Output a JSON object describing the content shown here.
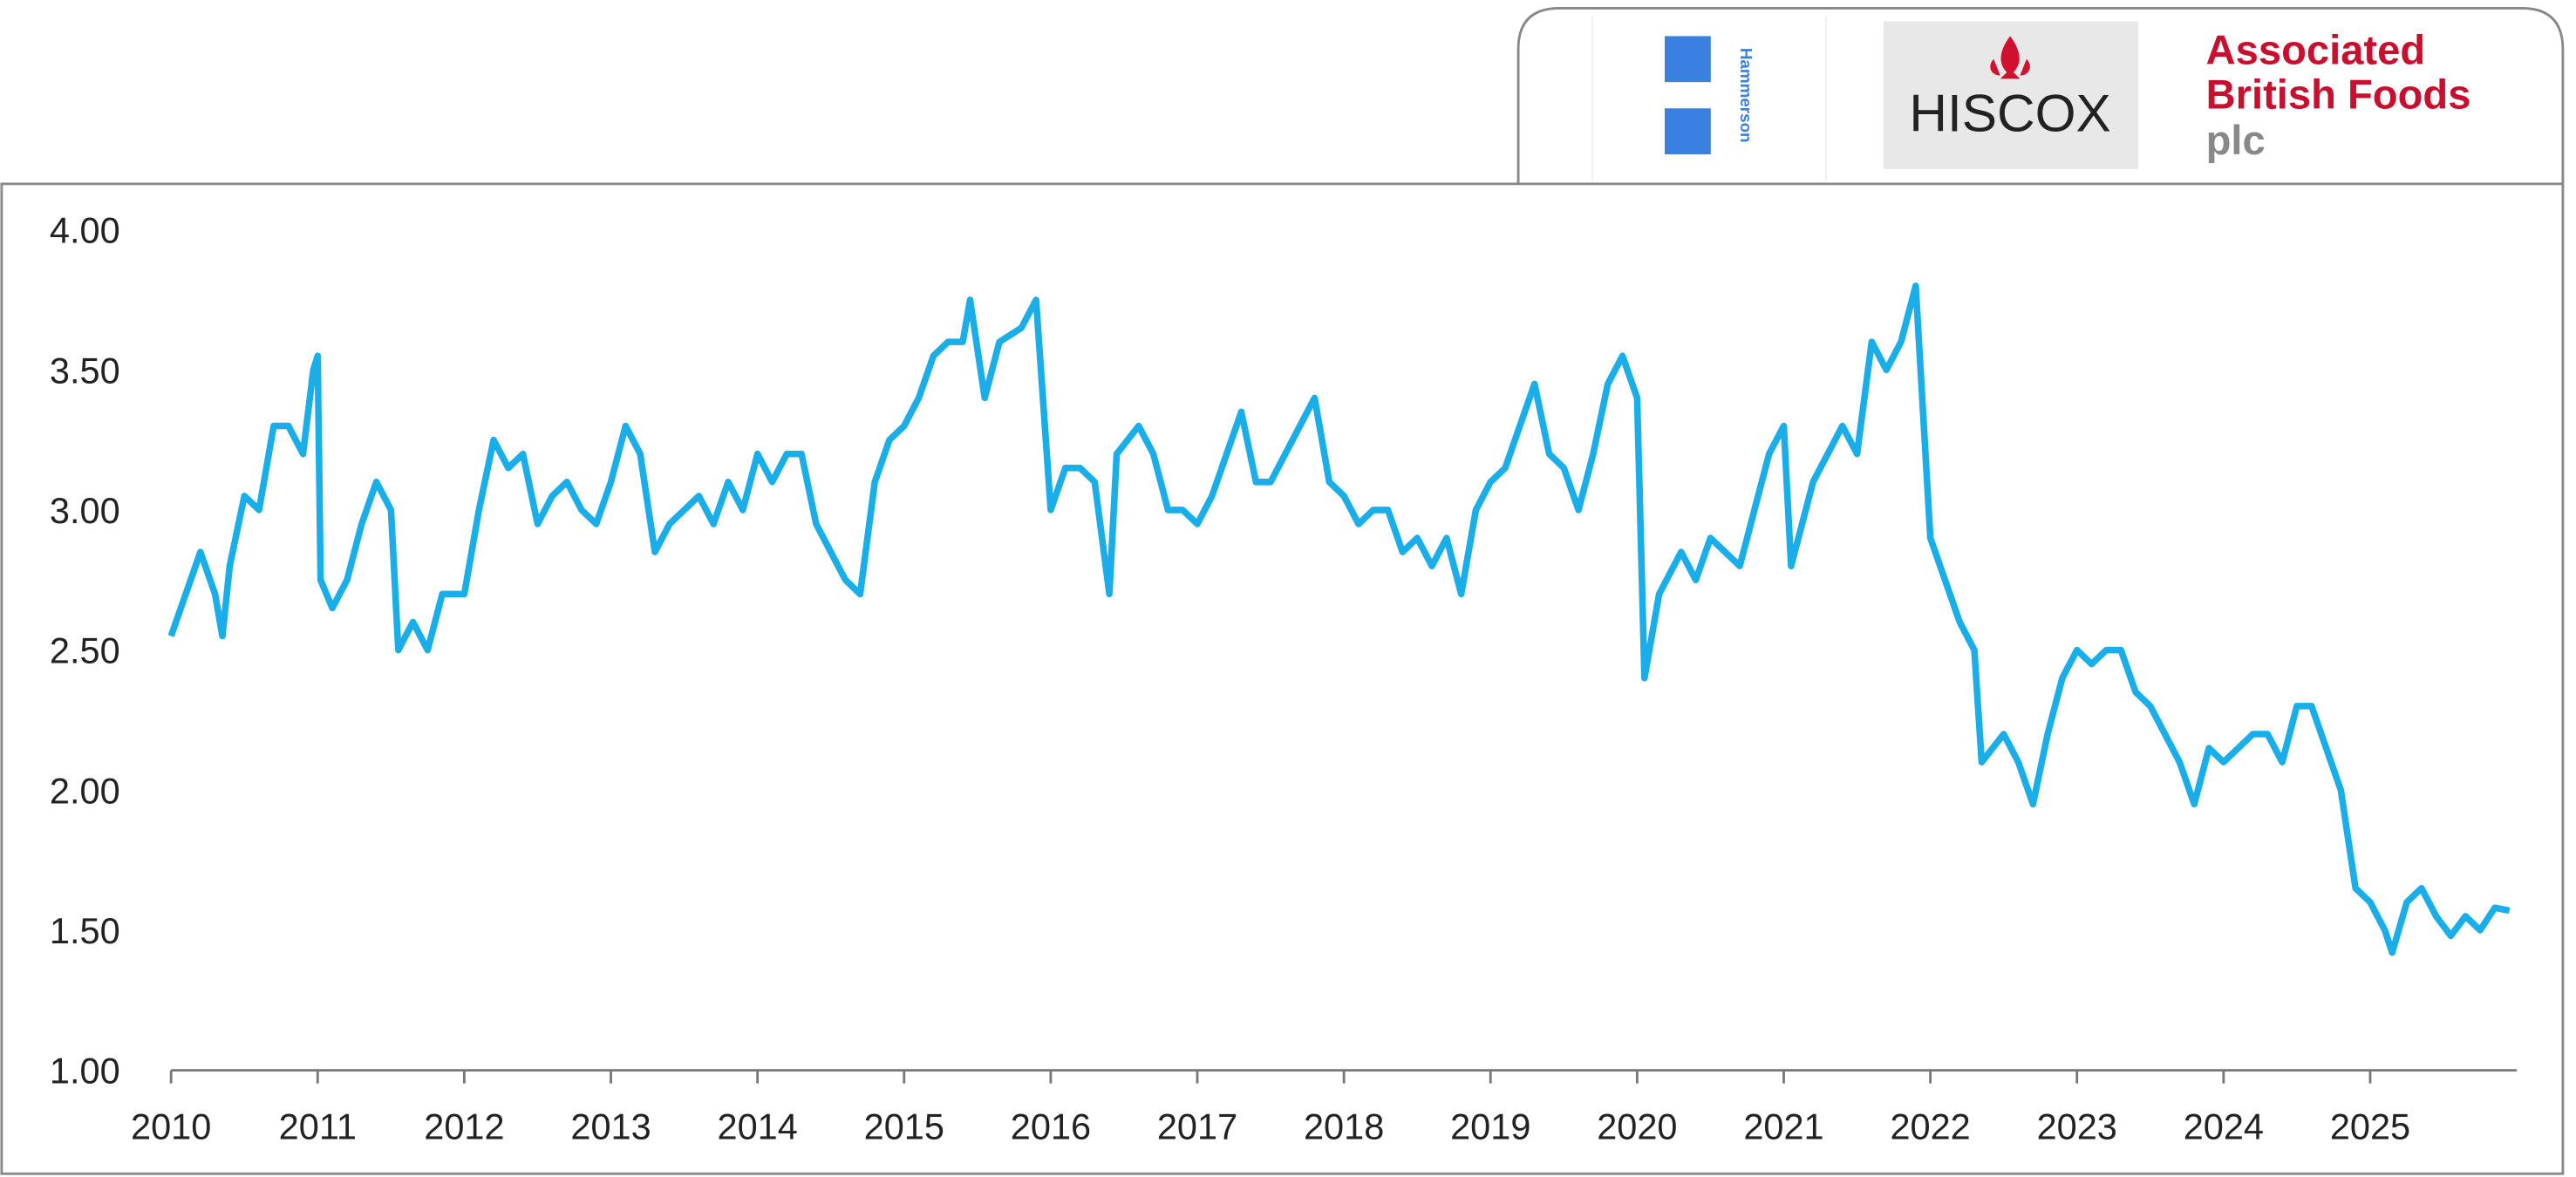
{
  "logos": {
    "hammerson": "Hammerson",
    "hiscox": "HISCOX",
    "abf": [
      "Associated",
      "British Foods",
      "plc"
    ]
  },
  "chart_data": {
    "type": "line",
    "color": "#19aeea",
    "xlim": [
      2010,
      2026
    ],
    "xticks": [
      2010,
      2011,
      2012,
      2013,
      2014,
      2015,
      2016,
      2017,
      2018,
      2019,
      2020,
      2021,
      2022,
      2023,
      2024,
      2025
    ],
    "ylim": [
      1,
      4
    ],
    "yticks": [
      {
        "value": 1,
        "label": "1.00"
      },
      {
        "value": 1.5,
        "label": "1.50"
      },
      {
        "value": 2,
        "label": "2.00"
      },
      {
        "value": 2.5,
        "label": "2.50"
      },
      {
        "value": 3,
        "label": "3.00"
      },
      {
        "value": 3.5,
        "label": "3.50"
      },
      {
        "value": 4,
        "label": "4.00"
      }
    ],
    "x": [
      2010.0,
      2010.1,
      2010.2,
      2010.3,
      2010.35,
      2010.4,
      2010.5,
      2010.6,
      2010.7,
      2010.8,
      2010.9,
      2010.97,
      2011.0,
      2011.02,
      2011.1,
      2011.2,
      2011.3,
      2011.4,
      2011.5,
      2011.55,
      2011.65,
      2011.75,
      2011.85,
      2012.0,
      2012.1,
      2012.2,
      2012.3,
      2012.4,
      2012.5,
      2012.6,
      2012.7,
      2012.8,
      2012.9,
      2013.0,
      2013.1,
      2013.2,
      2013.3,
      2013.4,
      2013.5,
      2013.6,
      2013.7,
      2013.8,
      2013.9,
      2014.0,
      2014.1,
      2014.2,
      2014.3,
      2014.4,
      2014.5,
      2014.6,
      2014.7,
      2014.8,
      2014.9,
      2015.0,
      2015.1,
      2015.2,
      2015.3,
      2015.4,
      2015.45,
      2015.55,
      2015.65,
      2015.8,
      2015.9,
      2016.0,
      2016.1,
      2016.2,
      2016.3,
      2016.4,
      2016.45,
      2016.6,
      2016.7,
      2016.8,
      2016.9,
      2017.0,
      2017.1,
      2017.2,
      2017.3,
      2017.4,
      2017.5,
      2017.6,
      2017.7,
      2017.8,
      2017.9,
      2018.0,
      2018.1,
      2018.2,
      2018.3,
      2018.4,
      2018.5,
      2018.6,
      2018.7,
      2018.8,
      2018.9,
      2019.0,
      2019.1,
      2019.2,
      2019.3,
      2019.4,
      2019.5,
      2019.6,
      2019.7,
      2019.8,
      2019.9,
      2020.0,
      2020.05,
      2020.15,
      2020.3,
      2020.4,
      2020.5,
      2020.6,
      2020.7,
      2020.8,
      2020.9,
      2021.0,
      2021.05,
      2021.1,
      2021.2,
      2021.3,
      2021.4,
      2021.5,
      2021.6,
      2021.7,
      2021.8,
      2021.9,
      2022.0,
      2022.1,
      2022.2,
      2022.3,
      2022.35,
      2022.5,
      2022.6,
      2022.7,
      2022.8,
      2022.9,
      2023.0,
      2023.1,
      2023.2,
      2023.3,
      2023.4,
      2023.5,
      2023.6,
      2023.7,
      2023.8,
      2023.9,
      2024.0,
      2024.1,
      2024.2,
      2024.3,
      2024.4,
      2024.5,
      2024.6,
      2024.7,
      2024.8,
      2024.9,
      2025.0,
      2025.1,
      2025.15,
      2025.25,
      2025.35,
      2025.45,
      2025.55,
      2025.65,
      2025.75,
      2025.85,
      2025.95
    ],
    "values": [
      2.55,
      2.7,
      2.85,
      2.7,
      2.55,
      2.8,
      3.05,
      3.0,
      3.3,
      3.3,
      3.2,
      3.5,
      3.55,
      2.75,
      2.65,
      2.75,
      2.95,
      3.1,
      3.0,
      2.5,
      2.6,
      2.5,
      2.7,
      2.7,
      3.0,
      3.25,
      3.15,
      3.2,
      2.95,
      3.05,
      3.1,
      3.0,
      2.95,
      3.1,
      3.3,
      3.2,
      2.85,
      2.95,
      3.0,
      3.05,
      2.95,
      3.1,
      3.0,
      3.2,
      3.1,
      3.2,
      3.2,
      2.95,
      2.85,
      2.75,
      2.7,
      3.1,
      3.25,
      3.3,
      3.4,
      3.55,
      3.6,
      3.6,
      3.75,
      3.4,
      3.6,
      3.65,
      3.75,
      3.0,
      3.15,
      3.15,
      3.1,
      2.7,
      3.2,
      3.3,
      3.2,
      3.0,
      3.0,
      2.95,
      3.05,
      3.2,
      3.35,
      3.1,
      3.1,
      3.2,
      3.3,
      3.4,
      3.1,
      3.05,
      2.95,
      3.0,
      3.0,
      2.85,
      2.9,
      2.8,
      2.9,
      2.7,
      3.0,
      3.1,
      3.15,
      3.3,
      3.45,
      3.2,
      3.15,
      3.0,
      3.2,
      3.45,
      3.55,
      3.4,
      2.4,
      2.7,
      2.85,
      2.75,
      2.9,
      2.85,
      2.8,
      3.0,
      3.2,
      3.3,
      2.8,
      2.9,
      3.1,
      3.2,
      3.3,
      3.2,
      3.6,
      3.5,
      3.6,
      3.8,
      2.9,
      2.75,
      2.6,
      2.5,
      2.1,
      2.2,
      2.1,
      1.95,
      2.2,
      2.4,
      2.5,
      2.45,
      2.5,
      2.5,
      2.35,
      2.3,
      2.2,
      2.1,
      1.95,
      2.15,
      2.1,
      2.15,
      2.2,
      2.2,
      2.1,
      2.3,
      2.3,
      2.15,
      2.0,
      1.65,
      1.6,
      1.5,
      1.42,
      1.6,
      1.65,
      1.55,
      1.48,
      1.55,
      1.5,
      1.58,
      1.57
    ]
  }
}
